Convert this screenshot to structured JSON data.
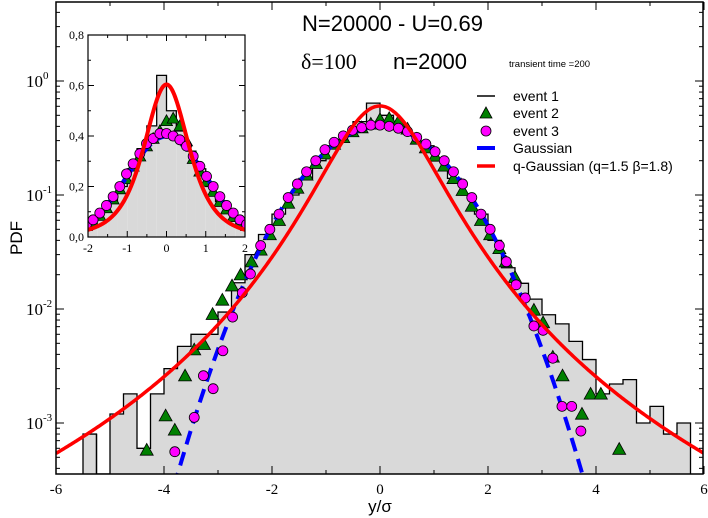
{
  "colors": {
    "histogram_fill": "#d9d9d9",
    "histogram_line": "#000000",
    "event2": "#008000",
    "event3": "#ff00ff",
    "gaussian": "#0000ff",
    "q_gaussian": "#ff0000"
  },
  "annotations": {
    "line1": "N=20000 - U=0.69",
    "delta": "δ=100",
    "n": "n=2000",
    "transient": "transient  time =200"
  },
  "chart_data": [
    {
      "type": "histogram+scatter+line",
      "title": "",
      "xlabel": "y/σ",
      "ylabel": "PDF",
      "xlim": [
        -6,
        6
      ],
      "ylim": [
        0.00035,
        4.6
      ],
      "yscale": "log",
      "x_ticks": [
        "-6",
        "-4",
        "-2",
        "0",
        "2",
        "4",
        "6"
      ],
      "y_ticks": [
        {
          "base": "10",
          "exp": "-3"
        },
        {
          "base": "10",
          "exp": "-2"
        },
        {
          "base": "10",
          "exp": "-1"
        },
        {
          "base": "10",
          "exp": "0"
        }
      ],
      "grid": false,
      "legend_placement": "top-right",
      "legend": [
        "event 1",
        "event 2",
        "event 3",
        "Gaussian",
        "q-Gaussian (q=1.5 β=1.8)"
      ],
      "event1_histogram": {
        "bin_width": 0.25,
        "bin_starts": [
          -5.5,
          -5.25,
          -5.0,
          -4.75,
          -4.5,
          -4.25,
          -4.0,
          -3.75,
          -3.5,
          -3.25,
          -3.0,
          -2.75,
          -2.5,
          -2.25,
          -2.0,
          -1.75,
          -1.5,
          -1.25,
          -1.0,
          -0.75,
          -0.5,
          -0.25,
          0.0,
          0.25,
          0.5,
          0.75,
          1.0,
          1.25,
          1.5,
          1.75,
          2.0,
          2.25,
          2.5,
          2.75,
          3.0,
          3.25,
          3.5,
          3.75,
          4.0,
          4.25,
          4.5,
          4.75,
          5.0,
          5.25,
          5.5
        ],
        "values": [
          0.0008,
          0,
          0.0012,
          0.0018,
          0.0006,
          0.0018,
          0.003,
          0.0047,
          0.006,
          0.006,
          0.0094,
          0.017,
          0.03,
          0.045,
          0.068,
          0.1,
          0.14,
          0.2,
          0.27,
          0.35,
          0.44,
          0.64,
          0.5,
          0.42,
          0.34,
          0.27,
          0.2,
          0.14,
          0.1,
          0.068,
          0.04,
          0.023,
          0.0168,
          0.0122,
          0.0089,
          0.0074,
          0.0052,
          0.0036,
          0.0018,
          0.0022,
          0.0024,
          0.001,
          0.0014,
          0.0008,
          0.001
        ]
      },
      "event2": {
        "x": [
          -4.32,
          -3.97,
          -3.8,
          -3.61,
          -3.44,
          -3.26,
          -3.1,
          -2.92,
          -2.74,
          -2.58,
          -2.38,
          -2.21,
          -2.04,
          -1.87,
          -1.7,
          -1.53,
          -1.36,
          -1.19,
          -1.02,
          -0.85,
          -0.68,
          -0.51,
          -0.34,
          -0.17,
          0.0,
          0.17,
          0.34,
          0.51,
          0.68,
          0.85,
          1.02,
          1.19,
          1.36,
          1.53,
          1.7,
          1.87,
          2.04,
          2.21,
          2.33,
          2.5,
          2.85,
          3.02,
          3.2,
          3.38,
          3.74,
          3.9,
          4.09,
          4.43
        ],
        "y": [
          0.00058,
          0.00116,
          0.00087,
          0.0026,
          0.0044,
          0.0049,
          0.009,
          0.012,
          0.016,
          0.02,
          0.026,
          0.033,
          0.045,
          0.06,
          0.085,
          0.115,
          0.15,
          0.19,
          0.23,
          0.28,
          0.32,
          0.36,
          0.39,
          0.42,
          0.46,
          0.47,
          0.44,
          0.38,
          0.31,
          0.26,
          0.22,
          0.18,
          0.14,
          0.11,
          0.08,
          0.06,
          0.045,
          0.034,
          0.026,
          0.019,
          0.0098,
          0.0076,
          0.0038,
          0.0026,
          0.0012,
          0.0018,
          0.0018,
          0.00059
        ]
      },
      "event3": {
        "x": [
          -3.8,
          -3.44,
          -3.27,
          -3.09,
          -2.91,
          -2.73,
          -2.55,
          -2.4,
          -2.21,
          -2.04,
          -1.87,
          -1.7,
          -1.53,
          -1.36,
          -1.19,
          -1.02,
          -0.85,
          -0.68,
          -0.51,
          -0.34,
          -0.17,
          0.0,
          0.17,
          0.34,
          0.51,
          0.68,
          0.85,
          1.02,
          1.19,
          1.36,
          1.53,
          1.7,
          1.87,
          2.04,
          2.21,
          2.34,
          2.52,
          2.69,
          2.85,
          3.02,
          3.2,
          3.37,
          3.55,
          3.72
        ],
        "y": [
          0.00056,
          0.00112,
          0.0026,
          0.002,
          0.0043,
          0.0085,
          0.0139,
          0.0203,
          0.036,
          0.05,
          0.068,
          0.095,
          0.125,
          0.16,
          0.2,
          0.25,
          0.29,
          0.33,
          0.37,
          0.39,
          0.41,
          0.41,
          0.4,
          0.385,
          0.36,
          0.32,
          0.28,
          0.24,
          0.2,
          0.16,
          0.125,
          0.095,
          0.068,
          0.05,
          0.036,
          0.026,
          0.0163,
          0.0125,
          0.0071,
          0.0065,
          0.0037,
          0.0014,
          0.0014,
          0.00085
        ]
      },
      "gaussian": {
        "mean": 0,
        "sigma": 1,
        "style": "dashed"
      },
      "q_gaussian": {
        "q": 1.5,
        "beta": 1.8,
        "style": "solid"
      }
    },
    {
      "type": "inset",
      "same_series_as": "main",
      "xlim": [
        -2,
        2
      ],
      "ylim": [
        0,
        0.8
      ],
      "yscale": "linear",
      "x_ticks": [
        "-2",
        "-1",
        "0",
        "1",
        "2"
      ],
      "y_ticks": [
        "0,0",
        "0,2",
        "0,4",
        "0,6",
        "0,8"
      ]
    }
  ]
}
